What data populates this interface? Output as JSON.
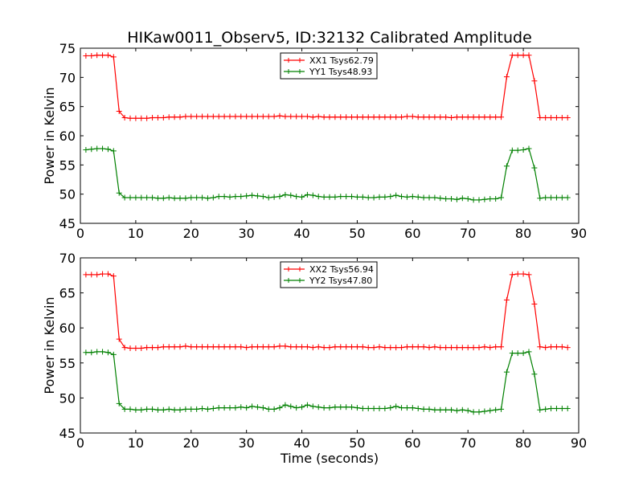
{
  "figure": {
    "title": "HIKaw0011_Observ5, ID:32132 Calibrated Amplitude"
  },
  "chart_data": [
    {
      "type": "line",
      "title": "HIKaw0011_Observ5, ID:32132 Calibrated Amplitude",
      "xlabel": "",
      "ylabel": "Power in Kelvin",
      "xlim": [
        0,
        90
      ],
      "ylim": [
        45,
        75
      ],
      "xticks": [
        0,
        10,
        20,
        30,
        40,
        50,
        60,
        70,
        80,
        90
      ],
      "yticks": [
        45,
        50,
        55,
        60,
        65,
        70,
        75
      ],
      "grid": false,
      "legend_position": "top-center",
      "marker": "plus",
      "series": [
        {
          "name": "XX1 Tsys62.79",
          "color": "#ff0000",
          "x": [
            1,
            2,
            3,
            4,
            5,
            6,
            7,
            8,
            9,
            10,
            11,
            12,
            13,
            14,
            15,
            16,
            17,
            18,
            19,
            20,
            21,
            22,
            23,
            24,
            25,
            26,
            27,
            28,
            29,
            30,
            31,
            32,
            33,
            34,
            35,
            36,
            37,
            38,
            39,
            40,
            41,
            42,
            43,
            44,
            45,
            46,
            47,
            48,
            49,
            50,
            51,
            52,
            53,
            54,
            55,
            56,
            57,
            58,
            59,
            60,
            61,
            62,
            63,
            64,
            65,
            66,
            67,
            68,
            69,
            70,
            71,
            72,
            73,
            74,
            75,
            76,
            77,
            78,
            79,
            80,
            81,
            82,
            83,
            84,
            85,
            86,
            87,
            88
          ],
          "values": [
            73.7,
            73.7,
            73.8,
            73.8,
            73.8,
            73.5,
            64.2,
            63.1,
            63.0,
            63.0,
            63.0,
            63.0,
            63.1,
            63.1,
            63.1,
            63.2,
            63.2,
            63.2,
            63.3,
            63.3,
            63.3,
            63.3,
            63.3,
            63.3,
            63.3,
            63.3,
            63.3,
            63.3,
            63.3,
            63.3,
            63.3,
            63.3,
            63.3,
            63.3,
            63.3,
            63.4,
            63.3,
            63.3,
            63.3,
            63.3,
            63.3,
            63.2,
            63.3,
            63.2,
            63.2,
            63.2,
            63.2,
            63.2,
            63.2,
            63.2,
            63.2,
            63.2,
            63.2,
            63.2,
            63.2,
            63.2,
            63.2,
            63.2,
            63.3,
            63.3,
            63.2,
            63.2,
            63.2,
            63.2,
            63.2,
            63.2,
            63.1,
            63.2,
            63.2,
            63.2,
            63.2,
            63.2,
            63.2,
            63.2,
            63.2,
            63.2,
            70.1,
            73.8,
            73.8,
            73.8,
            73.8,
            69.4,
            63.1,
            63.1,
            63.1,
            63.1,
            63.1,
            63.1
          ]
        },
        {
          "name": "YY1 Tsys48.93",
          "color": "#008000",
          "x": [
            1,
            2,
            3,
            4,
            5,
            6,
            7,
            8,
            9,
            10,
            11,
            12,
            13,
            14,
            15,
            16,
            17,
            18,
            19,
            20,
            21,
            22,
            23,
            24,
            25,
            26,
            27,
            28,
            29,
            30,
            31,
            32,
            33,
            34,
            35,
            36,
            37,
            38,
            39,
            40,
            41,
            42,
            43,
            44,
            45,
            46,
            47,
            48,
            49,
            50,
            51,
            52,
            53,
            54,
            55,
            56,
            57,
            58,
            59,
            60,
            61,
            62,
            63,
            64,
            65,
            66,
            67,
            68,
            69,
            70,
            71,
            72,
            73,
            74,
            75,
            76,
            77,
            78,
            79,
            80,
            81,
            82,
            83,
            84,
            85,
            86,
            87,
            88
          ],
          "values": [
            57.6,
            57.7,
            57.8,
            57.8,
            57.7,
            57.4,
            50.2,
            49.4,
            49.4,
            49.4,
            49.4,
            49.4,
            49.4,
            49.3,
            49.3,
            49.4,
            49.3,
            49.3,
            49.3,
            49.4,
            49.4,
            49.4,
            49.3,
            49.4,
            49.6,
            49.6,
            49.5,
            49.6,
            49.6,
            49.7,
            49.8,
            49.7,
            49.6,
            49.4,
            49.5,
            49.6,
            49.9,
            49.8,
            49.6,
            49.5,
            49.9,
            49.8,
            49.6,
            49.5,
            49.5,
            49.5,
            49.6,
            49.6,
            49.6,
            49.5,
            49.5,
            49.4,
            49.4,
            49.5,
            49.5,
            49.6,
            49.8,
            49.6,
            49.5,
            49.6,
            49.5,
            49.4,
            49.4,
            49.4,
            49.3,
            49.2,
            49.2,
            49.1,
            49.3,
            49.2,
            49.0,
            49.0,
            49.1,
            49.2,
            49.2,
            49.4,
            54.8,
            57.5,
            57.5,
            57.6,
            57.8,
            54.5,
            49.3,
            49.4,
            49.4,
            49.4,
            49.4,
            49.4
          ]
        }
      ]
    },
    {
      "type": "line",
      "title": "",
      "xlabel": "Time (seconds)",
      "ylabel": "Power in Kelvin",
      "xlim": [
        0,
        90
      ],
      "ylim": [
        45,
        70
      ],
      "xticks": [
        0,
        10,
        20,
        30,
        40,
        50,
        60,
        70,
        80,
        90
      ],
      "yticks": [
        45,
        50,
        55,
        60,
        65,
        70
      ],
      "grid": false,
      "legend_position": "top-center",
      "marker": "plus",
      "series": [
        {
          "name": "XX2 Tsys56.94",
          "color": "#ff0000",
          "x": [
            1,
            2,
            3,
            4,
            5,
            6,
            7,
            8,
            9,
            10,
            11,
            12,
            13,
            14,
            15,
            16,
            17,
            18,
            19,
            20,
            21,
            22,
            23,
            24,
            25,
            26,
            27,
            28,
            29,
            30,
            31,
            32,
            33,
            34,
            35,
            36,
            37,
            38,
            39,
            40,
            41,
            42,
            43,
            44,
            45,
            46,
            47,
            48,
            49,
            50,
            51,
            52,
            53,
            54,
            55,
            56,
            57,
            58,
            59,
            60,
            61,
            62,
            63,
            64,
            65,
            66,
            67,
            68,
            69,
            70,
            71,
            72,
            73,
            74,
            75,
            76,
            77,
            78,
            79,
            80,
            81,
            82,
            83,
            84,
            85,
            86,
            87,
            88
          ],
          "values": [
            67.6,
            67.6,
            67.6,
            67.7,
            67.7,
            67.4,
            58.4,
            57.2,
            57.1,
            57.1,
            57.1,
            57.2,
            57.2,
            57.2,
            57.3,
            57.3,
            57.3,
            57.3,
            57.4,
            57.3,
            57.3,
            57.3,
            57.3,
            57.3,
            57.3,
            57.3,
            57.3,
            57.3,
            57.3,
            57.2,
            57.3,
            57.3,
            57.3,
            57.3,
            57.3,
            57.4,
            57.4,
            57.3,
            57.3,
            57.3,
            57.3,
            57.2,
            57.3,
            57.2,
            57.2,
            57.3,
            57.3,
            57.3,
            57.3,
            57.3,
            57.3,
            57.2,
            57.2,
            57.3,
            57.2,
            57.2,
            57.2,
            57.2,
            57.3,
            57.3,
            57.3,
            57.3,
            57.2,
            57.3,
            57.2,
            57.2,
            57.2,
            57.2,
            57.2,
            57.2,
            57.2,
            57.2,
            57.3,
            57.2,
            57.3,
            57.3,
            64.0,
            67.6,
            67.7,
            67.7,
            67.6,
            63.4,
            57.3,
            57.2,
            57.3,
            57.3,
            57.3,
            57.2
          ]
        },
        {
          "name": "YY2 Tsys47.80",
          "color": "#008000",
          "x": [
            1,
            2,
            3,
            4,
            5,
            6,
            7,
            8,
            9,
            10,
            11,
            12,
            13,
            14,
            15,
            16,
            17,
            18,
            19,
            20,
            21,
            22,
            23,
            24,
            25,
            26,
            27,
            28,
            29,
            30,
            31,
            32,
            33,
            34,
            35,
            36,
            37,
            38,
            39,
            40,
            41,
            42,
            43,
            44,
            45,
            46,
            47,
            48,
            49,
            50,
            51,
            52,
            53,
            54,
            55,
            56,
            57,
            58,
            59,
            60,
            61,
            62,
            63,
            64,
            65,
            66,
            67,
            68,
            69,
            70,
            71,
            72,
            73,
            74,
            75,
            76,
            77,
            78,
            79,
            80,
            81,
            82,
            83,
            84,
            85,
            86,
            87,
            88
          ],
          "values": [
            56.5,
            56.5,
            56.6,
            56.6,
            56.5,
            56.2,
            49.2,
            48.4,
            48.4,
            48.3,
            48.3,
            48.4,
            48.4,
            48.3,
            48.3,
            48.4,
            48.3,
            48.3,
            48.4,
            48.4,
            48.4,
            48.5,
            48.4,
            48.5,
            48.6,
            48.6,
            48.6,
            48.6,
            48.7,
            48.6,
            48.8,
            48.7,
            48.6,
            48.4,
            48.4,
            48.6,
            49.0,
            48.8,
            48.6,
            48.7,
            49.0,
            48.8,
            48.7,
            48.6,
            48.6,
            48.7,
            48.7,
            48.7,
            48.7,
            48.6,
            48.5,
            48.5,
            48.5,
            48.5,
            48.5,
            48.6,
            48.8,
            48.6,
            48.6,
            48.6,
            48.5,
            48.4,
            48.4,
            48.3,
            48.3,
            48.3,
            48.3,
            48.2,
            48.3,
            48.2,
            48.0,
            48.0,
            48.1,
            48.2,
            48.3,
            48.4,
            53.7,
            56.4,
            56.4,
            56.4,
            56.6,
            53.4,
            48.3,
            48.4,
            48.5,
            48.5,
            48.5,
            48.5
          ]
        }
      ]
    }
  ]
}
